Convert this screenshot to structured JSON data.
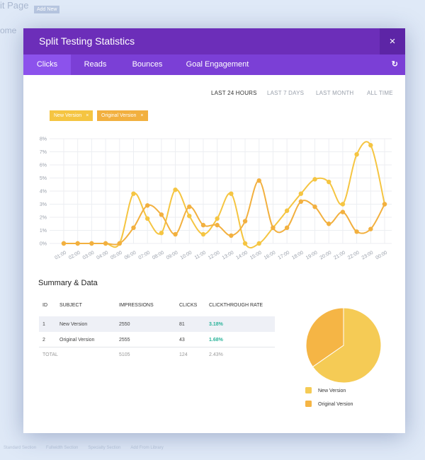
{
  "background": {
    "title": "it Page",
    "add_new": "Add New",
    "subtitle": "ome",
    "footer": [
      "Standard Section",
      "Fullwidth Section",
      "Specialty Section",
      "Add From Library"
    ]
  },
  "modal": {
    "title": "Split Testing Statistics",
    "close": "×",
    "tabs": [
      "Clicks",
      "Reads",
      "Bounces",
      "Goal Engagement"
    ],
    "refresh": "↻",
    "ranges": [
      "LAST 24 HOURS",
      "LAST 7 DAYS",
      "LAST MONTH",
      "ALL TIME"
    ],
    "filters": [
      {
        "label": "New Version",
        "remove": "×",
        "color": "#f5c542"
      },
      {
        "label": "Original Version",
        "remove": "×",
        "color": "#f2b03f"
      }
    ]
  },
  "chart_data": {
    "type": "line",
    "categories": [
      "01:00",
      "02:00",
      "03:00",
      "04:00",
      "05:00",
      "06:00",
      "07:00",
      "08:00",
      "09:00",
      "10:00",
      "11:00",
      "12:00",
      "13:00",
      "14:00",
      "15:00",
      "16:00",
      "17:00",
      "18:00",
      "19:00",
      "20:00",
      "21:00",
      "22:00",
      "23:00",
      "00:00"
    ],
    "series": [
      {
        "name": "New Version",
        "color": "#f5c542",
        "values": [
          0,
          0,
          0,
          0,
          0,
          3.8,
          1.9,
          0.8,
          4.1,
          2.1,
          0.7,
          1.9,
          3.8,
          0,
          0,
          1.2,
          2.5,
          3.8,
          4.9,
          4.7,
          3.0,
          6.8,
          7.5,
          3.0
        ]
      },
      {
        "name": "Original Version",
        "color": "#f2b03f",
        "values": [
          0,
          0,
          0,
          0,
          0,
          1.2,
          2.9,
          2.2,
          0.7,
          2.8,
          1.4,
          1.4,
          0.6,
          1.7,
          4.8,
          1.2,
          1.2,
          3.2,
          2.8,
          1.5,
          2.4,
          0.9,
          1.1,
          3.0
        ]
      }
    ],
    "ylim": [
      0,
      8
    ],
    "yticks": [
      {
        "value": 0,
        "label": "0%"
      },
      {
        "value": 1,
        "label": "1%"
      },
      {
        "value": 2,
        "label": "2%"
      },
      {
        "value": 3,
        "label": "3%"
      },
      {
        "value": 4,
        "label": "4%"
      },
      {
        "value": 5,
        "label": "5%"
      },
      {
        "value": 6,
        "label": "6%"
      },
      {
        "value": 7,
        "label": "7%"
      },
      {
        "value": 8,
        "label": "8%"
      }
    ],
    "grid": true
  },
  "summary": {
    "title": "Summary & Data",
    "table": {
      "header": [
        "ID",
        "SUBJECT",
        "IMPRESSIONS",
        "CLICKS",
        "CLICKTHROUGH RATE"
      ],
      "rows": [
        [
          "1",
          "New Version",
          2550,
          81,
          "3.18%"
        ],
        [
          "2",
          "Original Version",
          2555,
          43,
          "1.68%"
        ]
      ],
      "total": [
        "TOTAL",
        "",
        5105,
        124,
        "2.43%"
      ]
    },
    "pie": {
      "colors": [
        "#f5cb55",
        "#f5b545"
      ],
      "legend": [
        "New Version",
        "Original Version"
      ]
    }
  }
}
